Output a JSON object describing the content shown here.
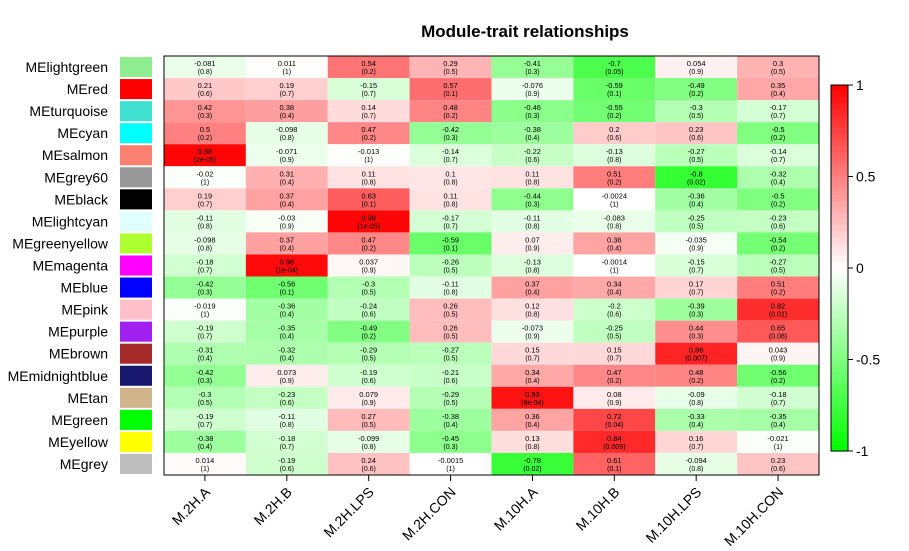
{
  "chart_data": {
    "type": "heatmap",
    "title": "Module-trait relationships",
    "columns": [
      "M.2H.A",
      "M.2H.B",
      "M.2H.LPS",
      "M.2H.CON",
      "M.10H.A",
      "M.10H.B",
      "M.10H.LPS",
      "M.10H.CON"
    ],
    "rows": [
      {
        "name": "MElightgreen",
        "color": "#90EE90",
        "values": [
          -0.081,
          0.011,
          0.54,
          0.29,
          -0.41,
          -0.7,
          0.054,
          0.3
        ],
        "cor_text": [
          "-0.081",
          "0.011",
          "0.54",
          "0.29",
          "-0.41",
          "-0.7",
          "0.054",
          "0.3"
        ],
        "p_text": [
          "(0.8)",
          "(1)",
          "(0.2)",
          "(0.5)",
          "(0.3)",
          "(0.05)",
          "(0.9)",
          "(0.5)"
        ]
      },
      {
        "name": "MEred",
        "color": "#FF0000",
        "values": [
          0.21,
          0.19,
          -0.15,
          0.57,
          -0.076,
          -0.59,
          -0.49,
          0.35
        ],
        "cor_text": [
          "0.21",
          "0.19",
          "-0.15",
          "0.57",
          "-0.076",
          "-0.59",
          "-0.49",
          "0.35"
        ],
        "p_text": [
          "(0.6)",
          "(0.7)",
          "(0.7)",
          "(0.1)",
          "(0.9)",
          "(0.1)",
          "(0.2)",
          "(0.4)"
        ]
      },
      {
        "name": "MEturquoise",
        "color": "#40E0D0",
        "values": [
          0.42,
          0.38,
          0.14,
          0.48,
          -0.46,
          -0.55,
          -0.3,
          -0.17
        ],
        "cor_text": [
          "0.42",
          "0.38",
          "0.14",
          "0.48",
          "-0.46",
          "-0.55",
          "-0.3",
          "-0.17"
        ],
        "p_text": [
          "(0.3)",
          "(0.4)",
          "(0.7)",
          "(0.2)",
          "(0.3)",
          "(0.2)",
          "(0.5)",
          "(0.7)"
        ]
      },
      {
        "name": "MEcyan",
        "color": "#00FFFF",
        "values": [
          0.5,
          -0.098,
          0.47,
          -0.42,
          -0.38,
          0.2,
          0.23,
          -0.5
        ],
        "cor_text": [
          "0.5",
          "-0.098",
          "0.47",
          "-0.42",
          "-0.38",
          "0.2",
          "0.23",
          "-0.5"
        ],
        "p_text": [
          "(0.2)",
          "(0.8)",
          "(0.2)",
          "(0.3)",
          "(0.4)",
          "(0.6)",
          "(0.6)",
          "(0.2)"
        ]
      },
      {
        "name": "MEsalmon",
        "color": "#FA8072",
        "values": [
          0.98,
          -0.071,
          -0.013,
          -0.14,
          -0.22,
          -0.13,
          -0.27,
          -0.14
        ],
        "cor_text": [
          "0.98",
          "-0.071",
          "-0.013",
          "-0.14",
          "-0.22",
          "-0.13",
          "-0.27",
          "-0.14"
        ],
        "p_text": [
          "(2e-05)",
          "(0.9)",
          "(1)",
          "(0.7)",
          "(0.6)",
          "(0.8)",
          "(0.5)",
          "(0.7)"
        ]
      },
      {
        "name": "MEgrey60",
        "color": "#999999",
        "values": [
          -0.02,
          0.31,
          0.11,
          0.1,
          0.11,
          0.51,
          -0.8,
          -0.32
        ],
        "cor_text": [
          "-0.02",
          "0.31",
          "0.11",
          "0.1",
          "0.11",
          "0.51",
          "-0.8",
          "-0.32"
        ],
        "p_text": [
          "(1)",
          "(0.4)",
          "(0.8)",
          "(0.8)",
          "(0.8)",
          "(0.2)",
          "(0.02)",
          "(0.4)"
        ]
      },
      {
        "name": "MEblack",
        "color": "#000000",
        "values": [
          0.19,
          0.37,
          0.63,
          0.11,
          -0.44,
          -0.0024,
          -0.36,
          -0.5
        ],
        "cor_text": [
          "0.19",
          "0.37",
          "0.63",
          "0.11",
          "-0.44",
          "-0.0024",
          "-0.36",
          "-0.5"
        ],
        "p_text": [
          "(0.7)",
          "(0.4)",
          "(0.1)",
          "(0.8)",
          "(0.3)",
          "(1)",
          "(0.4)",
          "(0.2)"
        ]
      },
      {
        "name": "MElightcyan",
        "color": "#E0FFFF",
        "values": [
          -0.11,
          -0.03,
          0.98,
          -0.17,
          -0.11,
          -0.083,
          -0.25,
          -0.23
        ],
        "cor_text": [
          "-0.11",
          "-0.03",
          "0.98",
          "-0.17",
          "-0.11",
          "-0.083",
          "-0.25",
          "-0.23"
        ],
        "p_text": [
          "(0.8)",
          "(0.9)",
          "(1e-05)",
          "(0.7)",
          "(0.8)",
          "(0.8)",
          "(0.5)",
          "(0.6)"
        ]
      },
      {
        "name": "MEgreenyellow",
        "color": "#ADFF2F",
        "values": [
          -0.098,
          0.37,
          0.47,
          -0.59,
          0.07,
          0.36,
          -0.035,
          -0.54
        ],
        "cor_text": [
          "-0.098",
          "0.37",
          "0.47",
          "-0.59",
          "0.07",
          "0.36",
          "-0.035",
          "-0.54"
        ],
        "p_text": [
          "(0.8)",
          "(0.4)",
          "(0.2)",
          "(0.1)",
          "(0.9)",
          "(0.4)",
          "(0.9)",
          "(0.2)"
        ]
      },
      {
        "name": "MEmagenta",
        "color": "#FF00FF",
        "values": [
          -0.18,
          0.96,
          0.037,
          -0.26,
          -0.13,
          -0.0014,
          -0.15,
          -0.27
        ],
        "cor_text": [
          "-0.18",
          "0.96",
          "0.037",
          "-0.26",
          "-0.13",
          "-0.0014",
          "-0.15",
          "-0.27"
        ],
        "p_text": [
          "(0.7)",
          "(1e-04)",
          "(0.9)",
          "(0.5)",
          "(0.8)",
          "(1)",
          "(0.7)",
          "(0.5)"
        ]
      },
      {
        "name": "MEblue",
        "color": "#0000FF",
        "values": [
          -0.42,
          -0.56,
          -0.3,
          -0.11,
          0.37,
          0.34,
          0.17,
          0.51
        ],
        "cor_text": [
          "-0.42",
          "-0.56",
          "-0.3",
          "-0.11",
          "0.37",
          "0.34",
          "0.17",
          "0.51"
        ],
        "p_text": [
          "(0.3)",
          "(0.1)",
          "(0.5)",
          "(0.8)",
          "(0.4)",
          "(0.4)",
          "(0.7)",
          "(0.2)"
        ]
      },
      {
        "name": "MEpink",
        "color": "#FFC0CB",
        "values": [
          -0.019,
          -0.36,
          -0.24,
          0.26,
          0.12,
          -0.2,
          -0.39,
          0.82
        ],
        "cor_text": [
          "-0.019",
          "-0.36",
          "-0.24",
          "0.26",
          "0.12",
          "-0.2",
          "-0.39",
          "0.82"
        ],
        "p_text": [
          "(1)",
          "(0.4)",
          "(0.6)",
          "(0.5)",
          "(0.8)",
          "(0.6)",
          "(0.3)",
          "(0.01)"
        ]
      },
      {
        "name": "MEpurple",
        "color": "#A020F0",
        "values": [
          -0.19,
          -0.35,
          -0.49,
          0.26,
          -0.073,
          -0.25,
          0.44,
          0.65
        ],
        "cor_text": [
          "-0.19",
          "-0.35",
          "-0.49",
          "0.26",
          "-0.073",
          "-0.25",
          "0.44",
          "0.65"
        ],
        "p_text": [
          "(0.7)",
          "(0.4)",
          "(0.2)",
          "(0.5)",
          "(0.9)",
          "(0.5)",
          "(0.3)",
          "(0.08)"
        ]
      },
      {
        "name": "MEbrown",
        "color": "#A52A2A",
        "values": [
          -0.31,
          -0.32,
          -0.29,
          -0.27,
          0.15,
          0.15,
          0.86,
          0.043
        ],
        "cor_text": [
          "-0.31",
          "-0.32",
          "-0.29",
          "-0.27",
          "0.15",
          "0.15",
          "0.86",
          "0.043"
        ],
        "p_text": [
          "(0.4)",
          "(0.4)",
          "(0.5)",
          "(0.5)",
          "(0.7)",
          "(0.7)",
          "(0.007)",
          "(0.9)"
        ]
      },
      {
        "name": "MEmidnightblue",
        "color": "#191970",
        "values": [
          -0.42,
          0.073,
          -0.19,
          -0.21,
          0.34,
          0.47,
          0.48,
          -0.56
        ],
        "cor_text": [
          "-0.42",
          "0.073",
          "-0.19",
          "-0.21",
          "0.34",
          "0.47",
          "0.48",
          "-0.56"
        ],
        "p_text": [
          "(0.3)",
          "(0.9)",
          "(0.6)",
          "(0.6)",
          "(0.4)",
          "(0.2)",
          "(0.2)",
          "(0.2)"
        ]
      },
      {
        "name": "MEtan",
        "color": "#D2B48C",
        "values": [
          -0.3,
          -0.23,
          0.079,
          -0.29,
          0.93,
          0.08,
          -0.09,
          -0.18
        ],
        "cor_text": [
          "-0.3",
          "-0.23",
          "0.079",
          "-0.29",
          "0.93",
          "0.08",
          "-0.09",
          "-0.18"
        ],
        "p_text": [
          "(0.5)",
          "(0.6)",
          "(0.9)",
          "(0.5)",
          "(8e-04)",
          "(0.9)",
          "(0.8)",
          "(0.7)"
        ]
      },
      {
        "name": "MEgreen",
        "color": "#00FF00",
        "values": [
          -0.19,
          -0.11,
          0.27,
          -0.38,
          0.36,
          0.72,
          -0.33,
          -0.35
        ],
        "cor_text": [
          "-0.19",
          "-0.11",
          "0.27",
          "-0.38",
          "0.36",
          "0.72",
          "-0.33",
          "-0.35"
        ],
        "p_text": [
          "(0.7)",
          "(0.8)",
          "(0.5)",
          "(0.4)",
          "(0.4)",
          "(0.04)",
          "(0.4)",
          "(0.4)"
        ]
      },
      {
        "name": "MEyellow",
        "color": "#FFFF00",
        "values": [
          -0.38,
          -0.18,
          -0.099,
          -0.45,
          0.13,
          0.84,
          0.16,
          -0.021
        ],
        "cor_text": [
          "-0.38",
          "-0.18",
          "-0.099",
          "-0.45",
          "0.13",
          "0.84",
          "0.16",
          "-0.021"
        ],
        "p_text": [
          "(0.4)",
          "(0.7)",
          "(0.8)",
          "(0.3)",
          "(0.8)",
          "(0.009)",
          "(0.7)",
          "(1)"
        ]
      },
      {
        "name": "MEgrey",
        "color": "#BEBEBE",
        "values": [
          0.014,
          -0.19,
          0.24,
          -0.0015,
          -0.78,
          0.61,
          -0.094,
          0.23
        ],
        "cor_text": [
          "0.014",
          "-0.19",
          "0.24",
          "-0.0015",
          "-0.78",
          "0.61",
          "-0.094",
          "0.23"
        ],
        "p_text": [
          "(1)",
          "(0.6)",
          "(0.6)",
          "(1)",
          "(0.02)",
          "(0.1)",
          "(0.8)",
          "(0.6)"
        ]
      }
    ],
    "color_scale": {
      "min": -1,
      "mid": 0,
      "max": 1,
      "low_color": "#00FF00",
      "mid_color": "#FFFFFF",
      "high_color": "#FF0000"
    },
    "legend_ticks": [
      "1",
      "0.5",
      "0",
      "-0.5",
      "-1"
    ],
    "legend_tick_values": [
      1,
      0.5,
      0,
      -0.5,
      -1
    ],
    "legend_position": "right"
  }
}
